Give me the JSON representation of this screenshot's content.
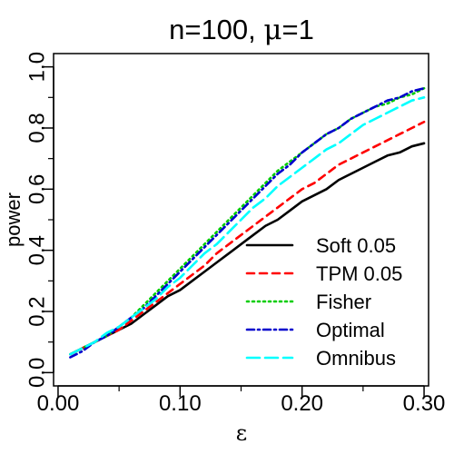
{
  "chart_data": {
    "type": "line",
    "title": "n=100, μ=1",
    "xlabel": "ε",
    "ylabel": "power",
    "xlim": [
      0.0,
      0.3
    ],
    "ylim": [
      0.0,
      1.0
    ],
    "x_ticks": [
      "0.00",
      "0.10",
      "0.20",
      "0.30"
    ],
    "y_ticks": [
      "0.0",
      "0.2",
      "0.4",
      "0.6",
      "0.8",
      "1.0"
    ],
    "grid": false,
    "legend_position": "bottom-right",
    "series": [
      {
        "name": "Soft 0.05",
        "color": "#000000",
        "dash": "solid",
        "x": [
          0.01,
          0.02,
          0.03,
          0.04,
          0.05,
          0.06,
          0.07,
          0.08,
          0.09,
          0.1,
          0.11,
          0.12,
          0.13,
          0.14,
          0.15,
          0.16,
          0.17,
          0.18,
          0.19,
          0.2,
          0.21,
          0.22,
          0.23,
          0.24,
          0.25,
          0.26,
          0.27,
          0.28,
          0.29,
          0.3
        ],
        "values": [
          0.06,
          0.08,
          0.1,
          0.12,
          0.14,
          0.16,
          0.19,
          0.22,
          0.25,
          0.27,
          0.3,
          0.33,
          0.36,
          0.39,
          0.42,
          0.45,
          0.48,
          0.5,
          0.53,
          0.56,
          0.58,
          0.6,
          0.63,
          0.65,
          0.67,
          0.69,
          0.71,
          0.72,
          0.74,
          0.75
        ]
      },
      {
        "name": "TPM 0.05",
        "color": "#ff0000",
        "dash": "dashed",
        "x": [
          0.01,
          0.02,
          0.03,
          0.04,
          0.05,
          0.06,
          0.07,
          0.08,
          0.09,
          0.1,
          0.11,
          0.12,
          0.13,
          0.14,
          0.15,
          0.16,
          0.17,
          0.18,
          0.19,
          0.2,
          0.21,
          0.22,
          0.23,
          0.24,
          0.25,
          0.26,
          0.27,
          0.28,
          0.29,
          0.3
        ],
        "values": [
          0.06,
          0.08,
          0.1,
          0.12,
          0.14,
          0.17,
          0.2,
          0.23,
          0.26,
          0.29,
          0.32,
          0.35,
          0.39,
          0.42,
          0.45,
          0.48,
          0.51,
          0.54,
          0.57,
          0.6,
          0.62,
          0.65,
          0.68,
          0.7,
          0.72,
          0.74,
          0.76,
          0.78,
          0.8,
          0.82
        ]
      },
      {
        "name": "Fisher",
        "color": "#00cd00",
        "dash": "dotted",
        "x": [
          0.01,
          0.02,
          0.03,
          0.04,
          0.05,
          0.06,
          0.07,
          0.08,
          0.09,
          0.1,
          0.11,
          0.12,
          0.13,
          0.14,
          0.15,
          0.16,
          0.17,
          0.18,
          0.19,
          0.2,
          0.21,
          0.22,
          0.23,
          0.24,
          0.25,
          0.26,
          0.27,
          0.28,
          0.29,
          0.3
        ],
        "values": [
          0.06,
          0.08,
          0.1,
          0.12,
          0.15,
          0.18,
          0.22,
          0.26,
          0.3,
          0.34,
          0.38,
          0.42,
          0.46,
          0.5,
          0.54,
          0.58,
          0.62,
          0.66,
          0.69,
          0.72,
          0.75,
          0.78,
          0.8,
          0.83,
          0.85,
          0.87,
          0.88,
          0.9,
          0.91,
          0.93
        ]
      },
      {
        "name": "Optimal",
        "color": "#0000cd",
        "dash": "dashdot",
        "x": [
          0.01,
          0.02,
          0.03,
          0.04,
          0.05,
          0.06,
          0.07,
          0.08,
          0.09,
          0.1,
          0.11,
          0.12,
          0.13,
          0.14,
          0.15,
          0.16,
          0.17,
          0.18,
          0.19,
          0.2,
          0.21,
          0.22,
          0.23,
          0.24,
          0.25,
          0.26,
          0.27,
          0.28,
          0.29,
          0.3
        ],
        "values": [
          0.05,
          0.07,
          0.1,
          0.12,
          0.15,
          0.18,
          0.21,
          0.25,
          0.29,
          0.33,
          0.37,
          0.41,
          0.45,
          0.49,
          0.53,
          0.57,
          0.61,
          0.65,
          0.68,
          0.72,
          0.75,
          0.78,
          0.8,
          0.83,
          0.85,
          0.87,
          0.89,
          0.9,
          0.92,
          0.93
        ]
      },
      {
        "name": "Omnibus",
        "color": "#00ffff",
        "dash": "longdash",
        "x": [
          0.01,
          0.02,
          0.03,
          0.04,
          0.05,
          0.06,
          0.07,
          0.08,
          0.09,
          0.1,
          0.11,
          0.12,
          0.13,
          0.14,
          0.15,
          0.16,
          0.17,
          0.18,
          0.19,
          0.2,
          0.21,
          0.22,
          0.23,
          0.24,
          0.25,
          0.26,
          0.27,
          0.28,
          0.29,
          0.3
        ],
        "values": [
          0.06,
          0.08,
          0.1,
          0.13,
          0.15,
          0.18,
          0.21,
          0.24,
          0.28,
          0.31,
          0.35,
          0.39,
          0.42,
          0.46,
          0.5,
          0.54,
          0.57,
          0.61,
          0.64,
          0.67,
          0.7,
          0.73,
          0.75,
          0.78,
          0.81,
          0.83,
          0.85,
          0.87,
          0.89,
          0.9
        ]
      }
    ]
  }
}
